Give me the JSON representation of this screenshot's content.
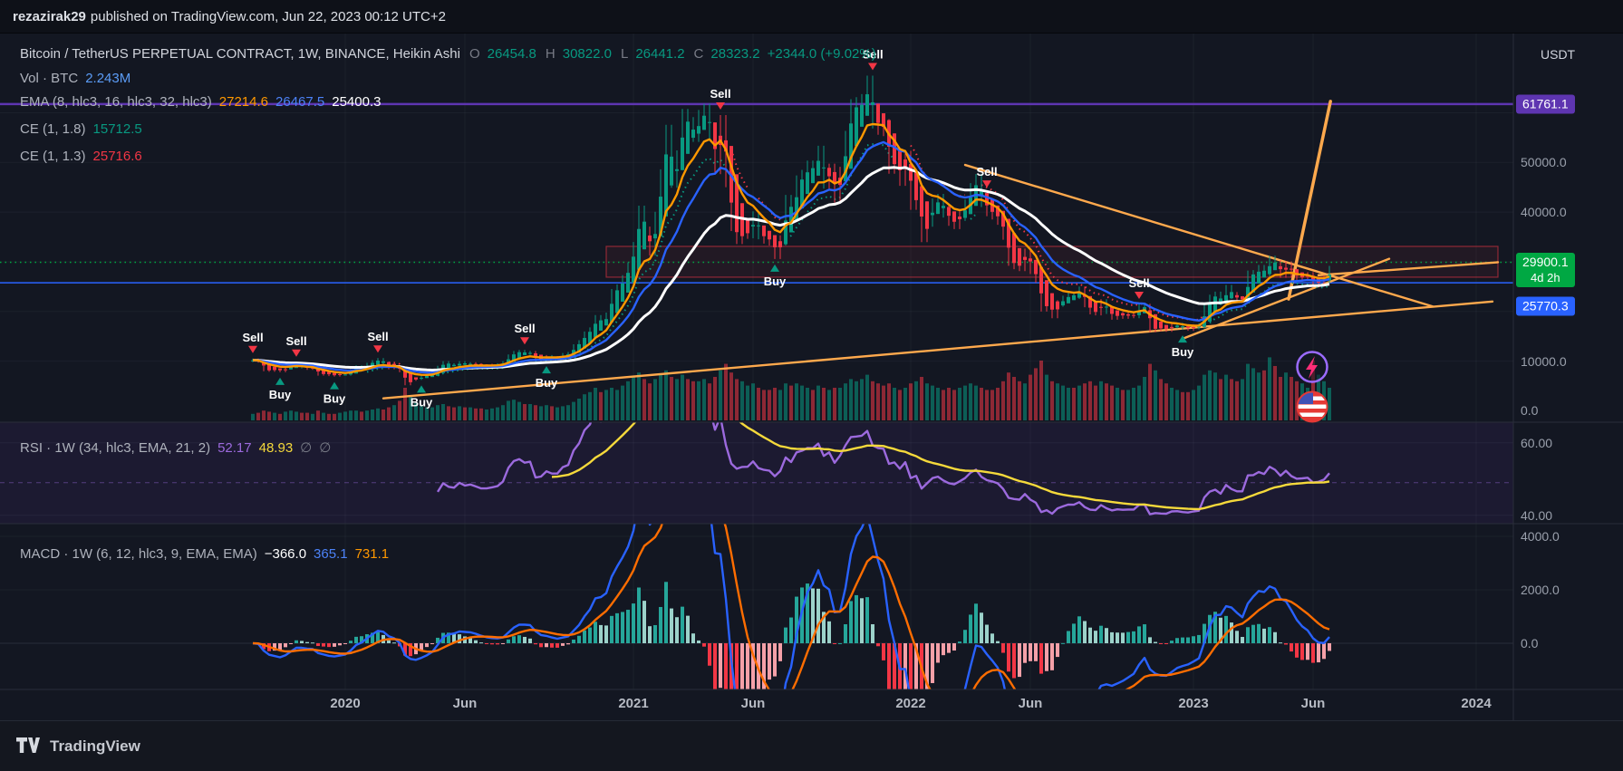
{
  "topbar": {
    "user": "rezazirak29",
    "rest": "published on TradingView.com, Jun 22, 2023 00:12 UTC+2"
  },
  "footer": {
    "brand": "TradingView"
  },
  "main_legend": {
    "symbol": "Bitcoin / TetherUS PERPETUAL CONTRACT, 1W, BINANCE, Heikin Ashi",
    "o_key": "O",
    "o_val": "26454.8",
    "h_key": "H",
    "h_val": "30822.0",
    "l_key": "L",
    "l_val": "26441.2",
    "c_key": "C",
    "c_val": "28323.2",
    "change": "+2344.0 (+9.02%)"
  },
  "vol_legend": {
    "label": "Vol · BTC",
    "value": "2.243M"
  },
  "ema_legend": {
    "label": "EMA (8, hlc3, 16, hlc3, 32, hlc3)",
    "v1": "27214.6",
    "v2": "26467.5",
    "v3": "25400.3"
  },
  "ce1_legend": {
    "label": "CE (1, 1.8)",
    "value": "15712.5"
  },
  "ce2_legend": {
    "label": "CE (1, 1.3)",
    "value": "25716.6"
  },
  "rsi_legend": {
    "label": "RSI · 1W (34, hlc3, EMA, 21, 2)",
    "v1": "52.17",
    "v2": "48.93",
    "v3": "∅",
    "v4": "∅"
  },
  "macd_legend": {
    "label": "MACD · 1W (6, 12, hlc3, 9, EMA, EMA)",
    "v1": "−366.0",
    "v2": "365.1",
    "v3": "731.1"
  },
  "price_scale": {
    "currency": "USDT",
    "l50": "50000.0",
    "l40": "40000.0",
    "l10": "10000.0",
    "l0": "0.0",
    "purple_badge": {
      "text": "61761.1",
      "color": "#5e35b1"
    },
    "green_badge": {
      "price": "29900.1",
      "countdown": "4d 2h",
      "color": "#00a843"
    },
    "blue_badge": {
      "text": "25770.3",
      "color": "#2962ff"
    }
  },
  "rsi_scale": {
    "l60": "60.00",
    "l40": "40.00"
  },
  "macd_scale": {
    "l4000": "4000.0",
    "l2000": "2000.0",
    "l0": "0.0"
  },
  "chart_data": {
    "type": "candlestick",
    "style": "Heikin Ashi",
    "symbol": "Bitcoin / TetherUS PERPETUAL CONTRACT",
    "exchange": "BINANCE",
    "interval": "1W",
    "x_start": "2019-09",
    "x_end": "2023-06",
    "ylim": [
      0,
      68000
    ],
    "buy_label": "Buy",
    "sell_label": "Sell",
    "closes": [
      10200,
      10000,
      8200,
      8100,
      8300,
      8000,
      8600,
      9200,
      9500,
      8800,
      8500,
      8500,
      7300,
      7500,
      7200,
      7100,
      7300,
      7300,
      8100,
      8900,
      8600,
      9400,
      9900,
      10300,
      9600,
      8600,
      8900,
      8000,
      5300,
      6200,
      6400,
      6900,
      7100,
      7500,
      8800,
      9700,
      9300,
      9200,
      9700,
      9400,
      9500,
      9300,
      9100,
      9100,
      9200,
      9300,
      9700,
      11000,
      11700,
      11900,
      11600,
      11700,
      10300,
      10400,
      10900,
      10700,
      10700,
      11300,
      11500,
      13000,
      13800,
      15500,
      16300,
      18700,
      17700,
      19200,
      23800,
      24700,
      26500,
      29000,
      33000,
      40100,
      36000,
      32200,
      38900,
      47200,
      55900,
      46300,
      50900,
      59000,
      57400,
      55800,
      58800,
      60000,
      56200,
      49100,
      57800,
      46400,
      37300,
      34600,
      35700,
      35800,
      39000,
      35600,
      34700,
      34300,
      31500,
      34300,
      42200,
      39900,
      46000,
      47100,
      48900,
      48800,
      51800,
      46100,
      48300,
      43200,
      47700,
      54700,
      60900,
      61300,
      61900,
      65500,
      58600,
      57300,
      57000,
      49200,
      50100,
      46700,
      50800,
      41700,
      43100,
      35000,
      38200,
      41500,
      42400,
      40100,
      38400,
      37700,
      39400,
      41300,
      44500,
      46300,
      42300,
      40400,
      39700,
      38600,
      35500,
      30100,
      29400,
      29000,
      31700,
      28400,
      26600,
      20600,
      21500,
      19200,
      21600,
      22500,
      23300,
      23200,
      24300,
      21500,
      20000,
      19800,
      21800,
      20100,
      18900,
      19300,
      19100,
      19200,
      19200,
      20800,
      20900,
      16300,
      16700,
      16500,
      16400,
      17100,
      17200,
      16800,
      16600,
      16900,
      17100,
      20900,
      22700,
      23300,
      21900,
      24600,
      23200,
      22400,
      22400,
      27400,
      27500,
      28500,
      27900,
      30300,
      29400,
      27600,
      29200,
      27600,
      26800,
      26900,
      27100,
      25700,
      25900,
      26500,
      28323
    ],
    "volumes": [
      6,
      7,
      9,
      8,
      7,
      6,
      8,
      9,
      8,
      7,
      7,
      6,
      9,
      7,
      6,
      6,
      7,
      8,
      9,
      9,
      8,
      9,
      10,
      11,
      10,
      12,
      14,
      18,
      30,
      22,
      16,
      13,
      12,
      12,
      14,
      15,
      13,
      12,
      13,
      12,
      12,
      11,
      11,
      10,
      11,
      12,
      14,
      18,
      19,
      17,
      15,
      15,
      14,
      13,
      14,
      13,
      12,
      13,
      14,
      17,
      20,
      24,
      26,
      30,
      26,
      28,
      30,
      28,
      32,
      36,
      40,
      44,
      38,
      34,
      38,
      42,
      46,
      40,
      38,
      42,
      38,
      36,
      36,
      38,
      34,
      40,
      46,
      52,
      44,
      38,
      36,
      32,
      34,
      30,
      28,
      28,
      30,
      28,
      34,
      32,
      34,
      32,
      30,
      28,
      32,
      30,
      28,
      30,
      30,
      34,
      38,
      36,
      38,
      42,
      36,
      34,
      32,
      34,
      30,
      28,
      30,
      34,
      36,
      40,
      34,
      32,
      30,
      28,
      30,
      28,
      30,
      32,
      34,
      32,
      30,
      28,
      28,
      30,
      36,
      44,
      40,
      36,
      34,
      42,
      48,
      55,
      42,
      36,
      34,
      32,
      30,
      30,
      32,
      34,
      36,
      32,
      36,
      34,
      32,
      30,
      28,
      28,
      30,
      32,
      40,
      52,
      46,
      38,
      34,
      30,
      28,
      26,
      26,
      28,
      32,
      42,
      46,
      44,
      38,
      42,
      38,
      36,
      38,
      52,
      48,
      44,
      46,
      58,
      50,
      40,
      44,
      40,
      36,
      34,
      30,
      55,
      42,
      36,
      30
    ],
    "indicators": {
      "ema_lengths": [
        8,
        16,
        32
      ],
      "rsi": [
        34,
        21
      ],
      "macd": [
        6,
        12,
        9
      ]
    },
    "signals": [
      {
        "i": 0,
        "side": "sell"
      },
      {
        "i": 5,
        "side": "buy"
      },
      {
        "i": 8,
        "side": "sell"
      },
      {
        "i": 15,
        "side": "buy"
      },
      {
        "i": 23,
        "side": "sell"
      },
      {
        "i": 31,
        "side": "buy"
      },
      {
        "i": 50,
        "side": "sell"
      },
      {
        "i": 54,
        "side": "buy"
      },
      {
        "i": 86,
        "side": "sell"
      },
      {
        "i": 96,
        "side": "buy"
      },
      {
        "i": 114,
        "side": "sell"
      },
      {
        "i": 135,
        "side": "sell"
      },
      {
        "i": 163,
        "side": "sell"
      },
      {
        "i": 171,
        "side": "buy"
      }
    ],
    "trendlines": [
      {
        "i1": 24,
        "p1": 2500,
        "i2": 228,
        "p2": 22000
      },
      {
        "i1": 131,
        "p1": 49500,
        "i2": 217,
        "p2": 21000
      },
      {
        "i1": 171,
        "p1": 14500,
        "i2": 209,
        "p2": 30600
      },
      {
        "i1": 196,
        "p1": 27300,
        "i2": 229,
        "p2": 29900
      },
      {
        "i1": 190.5,
        "p1": 22500,
        "i2": 198.2,
        "p2": 62300,
        "w": 3.5
      }
    ],
    "hlines": [
      {
        "price": 61761.1,
        "color": "#5e35b1",
        "w": 2.5,
        "style": "solid"
      },
      {
        "price": 25770.3,
        "color": "#2962ff",
        "w": 1.5,
        "style": "solid"
      },
      {
        "price": 29900.1,
        "color": "#00a843",
        "w": 1.5,
        "style": "dotted"
      }
    ],
    "box": {
      "i1": 65,
      "i2": 229,
      "top": 33100,
      "bottom": 26900
    },
    "time_ticks": [
      {
        "label": "2020",
        "i": 17
      },
      {
        "label": "Jun",
        "i": 39
      },
      {
        "label": "2021",
        "i": 70
      },
      {
        "label": "Jun",
        "i": 92
      },
      {
        "label": "2022",
        "i": 121
      },
      {
        "label": "Jun",
        "i": 143
      },
      {
        "label": "2023",
        "i": 173
      },
      {
        "label": "Jun",
        "i": 195
      },
      {
        "label": "2024",
        "i": 225
      }
    ],
    "colors": {
      "up": "#089981",
      "down": "#f23645",
      "ema8": "#ff9800",
      "ema16": "#2962ff",
      "ema32": "#ffffff",
      "rsi": "#9c6ade",
      "rsi_signal": "#f5d93b",
      "macd": "#2962ff",
      "macd_signal": "#ff6d00",
      "trend": "#ffa94d",
      "box": "#f23645"
    }
  }
}
